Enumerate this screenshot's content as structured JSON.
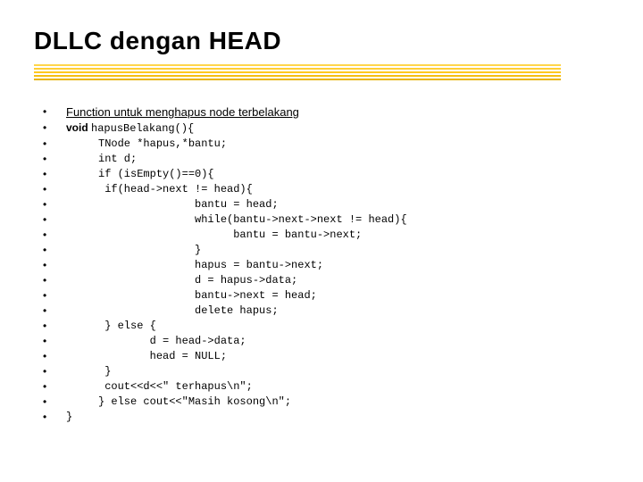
{
  "title": {
    "text": "DLLC dengan HEAD",
    "font_size": 28,
    "color": "#000000"
  },
  "underline": {
    "colors": [
      "#ffd54a",
      "#ffce35",
      "#ffc820",
      "#f6bf12",
      "#e9b400"
    ],
    "gap": 4
  },
  "bullet": {
    "glyph": "•",
    "color": "#000000",
    "font_size": 12
  },
  "lines": [
    {
      "style": "heading",
      "font_size": 13,
      "text": "Function untuk menghapus node terbelakang"
    },
    {
      "style": "sig",
      "font_size": 12,
      "prefix": "void ",
      "rest": "hapusBelakang(){"
    },
    {
      "style": "mono",
      "font_size": 12,
      "text": "     TNode *hapus,*bantu;"
    },
    {
      "style": "mono",
      "font_size": 12,
      "text": "     int d;"
    },
    {
      "style": "mono",
      "font_size": 12,
      "text": "     if (isEmpty()==0){"
    },
    {
      "style": "mono",
      "font_size": 12,
      "text": "      if(head->next != head){"
    },
    {
      "style": "mono",
      "font_size": 12,
      "text": "                    bantu = head;"
    },
    {
      "style": "mono",
      "font_size": 12,
      "text": "                    while(bantu->next->next != head){"
    },
    {
      "style": "mono",
      "font_size": 12,
      "text": "                          bantu = bantu->next;"
    },
    {
      "style": "mono",
      "font_size": 12,
      "text": "                    }"
    },
    {
      "style": "mono",
      "font_size": 12,
      "text": "                    hapus = bantu->next;"
    },
    {
      "style": "mono",
      "font_size": 12,
      "text": "                    d = hapus->data;"
    },
    {
      "style": "mono",
      "font_size": 12,
      "text": "                    bantu->next = head;"
    },
    {
      "style": "mono",
      "font_size": 12,
      "text": "                    delete hapus;"
    },
    {
      "style": "mono",
      "font_size": 12,
      "text": "      } else {"
    },
    {
      "style": "mono",
      "font_size": 12,
      "text": "             d = head->data;"
    },
    {
      "style": "mono",
      "font_size": 12,
      "text": "             head = NULL;"
    },
    {
      "style": "mono",
      "font_size": 12,
      "text": "      }"
    },
    {
      "style": "mono",
      "font_size": 12,
      "text": "      cout<<d<<\" terhapus\\n\";"
    },
    {
      "style": "mono",
      "font_size": 12,
      "text": "     } else cout<<\"Masih kosong\\n\";"
    },
    {
      "style": "mono",
      "font_size": 12,
      "text": "}"
    }
  ]
}
